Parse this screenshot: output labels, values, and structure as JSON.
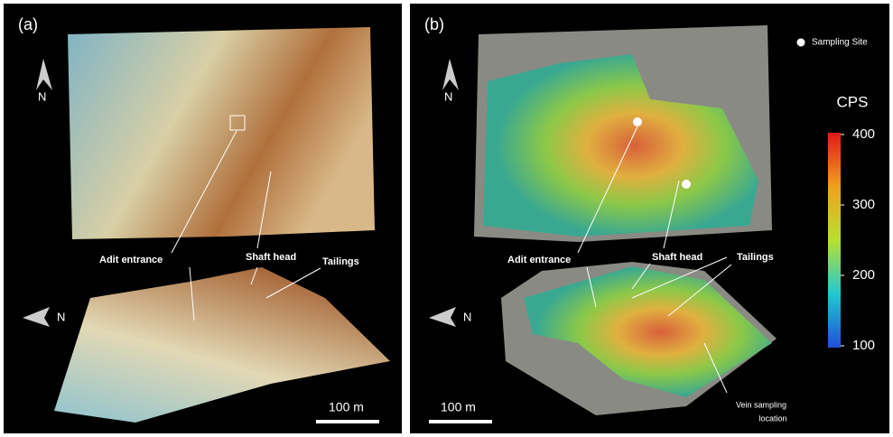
{
  "panels": [
    {
      "label": "(a)",
      "north_labels": [
        "N",
        "N"
      ],
      "annotations": [
        "Adit entrance",
        "Shaft head",
        "Tailings"
      ],
      "scale_bar": "100 m"
    },
    {
      "label": "(b)",
      "north_labels": [
        "N",
        "N"
      ],
      "annotations": [
        "Adit entrance",
        "Shaft head",
        "Tailings",
        "Vein sampling",
        "location"
      ],
      "scale_bar": "100 m",
      "legend": "Sampling Site",
      "colorbar": {
        "title": "CPS",
        "lim": [
          100,
          400
        ],
        "ticks": [
          100,
          200,
          300,
          400
        ]
      }
    }
  ]
}
